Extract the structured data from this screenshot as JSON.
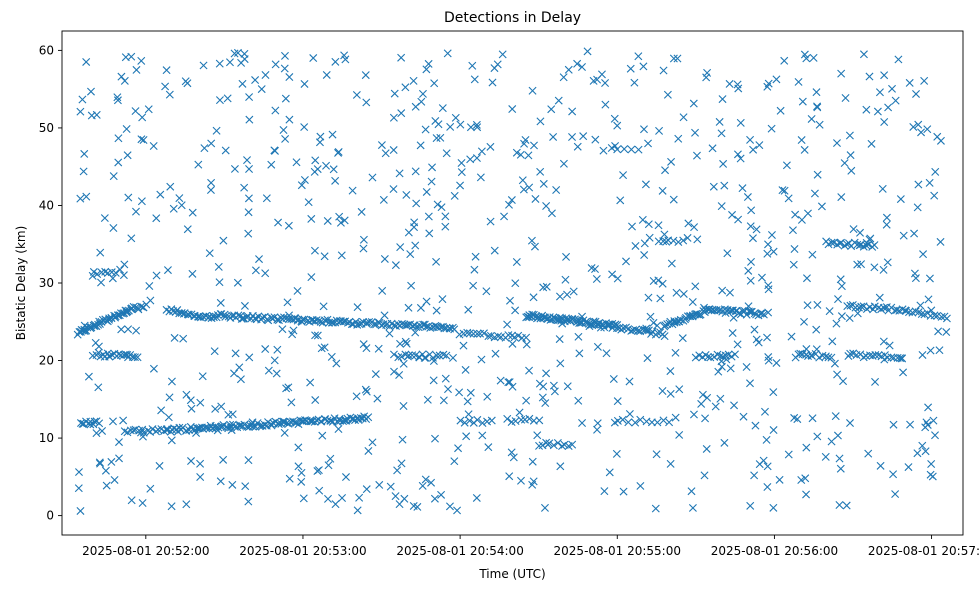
{
  "chart_data": {
    "type": "scatter",
    "title": "Detections in Delay",
    "xlabel": "Time (UTC)",
    "ylabel": "Bistatic Delay (km)",
    "marker": "x",
    "color": "#1f77b4",
    "grid": false,
    "legend": "none",
    "xlim_seconds": [
      -32,
      312
    ],
    "ylim": [
      -2.5,
      62.5
    ],
    "x_ticks": [
      {
        "t": 0,
        "label": "2025-08-01 20:52:00"
      },
      {
        "t": 60,
        "label": "2025-08-01 20:53:00"
      },
      {
        "t": 120,
        "label": "2025-08-01 20:54:00"
      },
      {
        "t": 180,
        "label": "2025-08-01 20:55:00"
      },
      {
        "t": 240,
        "label": "2025-08-01 20:56:00"
      },
      {
        "t": 300,
        "label": "2025-08-01 20:57:00"
      }
    ],
    "y_ticks": [
      {
        "v": 0,
        "label": "0"
      },
      {
        "v": 10,
        "label": "10"
      },
      {
        "v": 20,
        "label": "20"
      },
      {
        "v": 30,
        "label": "30"
      },
      {
        "v": 40,
        "label": "40"
      },
      {
        "v": 50,
        "label": "50"
      },
      {
        "v": 60,
        "label": "60"
      }
    ],
    "time_range_seconds": [
      -26,
      306
    ],
    "tracks": [
      {
        "name": "track-1",
        "t_start": -26,
        "t_end": -7,
        "y_start": 23.5,
        "y_end": 26.5,
        "count": 40
      },
      {
        "name": "track-2",
        "t_start": -7,
        "t_end": 0,
        "y_start": 26.5,
        "y_end": 27.0,
        "count": 12
      },
      {
        "name": "track-3",
        "t_start": 8,
        "t_end": 26,
        "y_start": 26.5,
        "y_end": 25.5,
        "count": 24
      },
      {
        "name": "track-4",
        "t_start": 26,
        "t_end": 118,
        "y_start": 25.8,
        "y_end": 24.2,
        "count": 120
      },
      {
        "name": "track-5",
        "t_start": 145,
        "t_end": 180,
        "y_start": 25.8,
        "y_end": 24.5,
        "count": 70
      },
      {
        "name": "track-6",
        "t_start": 180,
        "t_end": 198,
        "y_start": 24.2,
        "y_end": 23.4,
        "count": 22
      },
      {
        "name": "track-7",
        "t_start": 198,
        "t_end": 215,
        "y_start": 24.5,
        "y_end": 26.5,
        "count": 30
      },
      {
        "name": "track-8",
        "t_start": 215,
        "t_end": 236,
        "y_start": 26.5,
        "y_end": 26.0,
        "count": 30
      },
      {
        "name": "track-9",
        "t_start": 120,
        "t_end": 145,
        "y_start": 23.5,
        "y_end": 23.0,
        "count": 20
      },
      {
        "name": "track-10",
        "t_start": 268,
        "t_end": 290,
        "y_start": 27.0,
        "y_end": 26.5,
        "count": 22
      },
      {
        "name": "track-11",
        "t_start": 290,
        "t_end": 306,
        "y_start": 26.5,
        "y_end": 25.5,
        "count": 14
      },
      {
        "name": "track-12",
        "t_start": -8,
        "t_end": 8,
        "y_start": 10.8,
        "y_end": 11.0,
        "count": 16
      },
      {
        "name": "track-13",
        "t_start": 8,
        "t_end": 85,
        "y_start": 11.0,
        "y_end": 12.6,
        "count": 110
      },
      {
        "name": "track-14",
        "t_start": -20,
        "t_end": -3,
        "y_start": 20.8,
        "y_end": 20.5,
        "count": 20
      },
      {
        "name": "track-15",
        "t_start": 95,
        "t_end": 115,
        "y_start": 20.6,
        "y_end": 20.6,
        "count": 16
      },
      {
        "name": "track-16",
        "t_start": 210,
        "t_end": 225,
        "y_start": 20.6,
        "y_end": 20.6,
        "count": 14
      },
      {
        "name": "track-17",
        "t_start": 248,
        "t_end": 262,
        "y_start": 20.6,
        "y_end": 20.6,
        "count": 12
      },
      {
        "name": "track-18",
        "t_start": 268,
        "t_end": 288,
        "y_start": 20.8,
        "y_end": 20.2,
        "count": 18
      },
      {
        "name": "track-19",
        "t_start": 260,
        "t_end": 278,
        "y_start": 35.2,
        "y_end": 34.8,
        "count": 20
      },
      {
        "name": "track-20",
        "t_start": -25,
        "t_end": -18,
        "y_start": 12.0,
        "y_end": 12.0,
        "count": 10
      },
      {
        "name": "track-21",
        "t_start": 150,
        "t_end": 163,
        "y_start": 9.2,
        "y_end": 9.2,
        "count": 10
      },
      {
        "name": "track-22",
        "t_start": 175,
        "t_end": 188,
        "y_start": 47.2,
        "y_end": 47.2,
        "count": 6
      },
      {
        "name": "track-23",
        "t_start": -20,
        "t_end": -10,
        "y_start": 31.0,
        "y_end": 31.5,
        "count": 8
      },
      {
        "name": "track-24",
        "t_start": 120,
        "t_end": 132,
        "y_start": 12.1,
        "y_end": 12.1,
        "count": 8
      },
      {
        "name": "track-25",
        "t_start": 138,
        "t_end": 150,
        "y_start": 12.3,
        "y_end": 12.3,
        "count": 8
      },
      {
        "name": "track-26",
        "t_start": 180,
        "t_end": 200,
        "y_start": 12.2,
        "y_end": 12.2,
        "count": 10
      },
      {
        "name": "track-27",
        "t_start": 196,
        "t_end": 205,
        "y_start": 35.5,
        "y_end": 35.5,
        "count": 6
      }
    ],
    "clutter": {
      "count": 850,
      "t_min": -26,
      "t_max": 306,
      "y_min": 0.5,
      "y_max": 60.0
    }
  }
}
